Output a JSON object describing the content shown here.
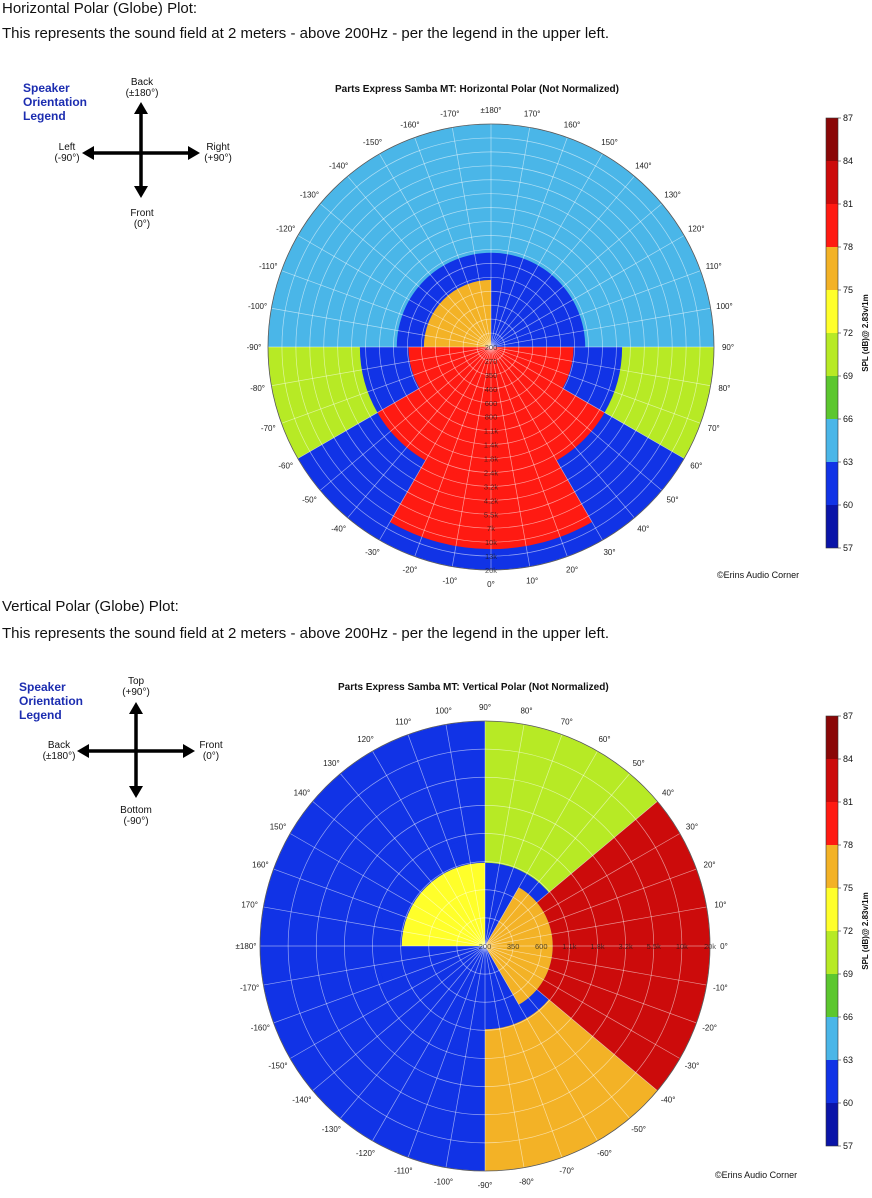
{
  "sections": [
    {
      "heading": "Horizontal Polar (Globe) Plot:",
      "description": "This represents the sound field at 2 meters - above 200Hz - per the legend in the upper left.",
      "legend_title": [
        "Speaker",
        "Orientation",
        "Legend"
      ],
      "orientation": {
        "top": [
          "Back",
          "(±180°)"
        ],
        "left": [
          "Left",
          "(-90°)"
        ],
        "right": [
          "Right",
          "(+90°)"
        ],
        "bottom": [
          "Front",
          "(0°)"
        ]
      },
      "copyright": "©Erins Audio Corner"
    },
    {
      "heading": "Vertical Polar (Globe) Plot:",
      "description": "This represents the sound field at 2 meters - above 200Hz - per the legend in the upper left.",
      "legend_title": [
        "Speaker",
        "Orientation",
        "Legend"
      ],
      "orientation": {
        "top": [
          "Top",
          "(+90°)"
        ],
        "left": [
          "Back",
          "(±180°)"
        ],
        "right": [
          "Front",
          "(0°)"
        ],
        "bottom": [
          "Bottom",
          "(-90°)"
        ]
      },
      "copyright": "©Erins Audio Corner"
    }
  ],
  "chart_data": [
    {
      "type": "heatmap",
      "coordinate_system": "polar",
      "title": "Parts Express Samba MT: Horizontal Polar (Not Normalized)",
      "angle_labels": [
        "±180°",
        "170°",
        "160°",
        "150°",
        "140°",
        "130°",
        "120°",
        "110°",
        "100°",
        "90°",
        "80°",
        "70°",
        "60°",
        "50°",
        "40°",
        "30°",
        "20°",
        "10°",
        "0°",
        "-10°",
        "-20°",
        "-30°",
        "-40°",
        "-50°",
        "-60°",
        "-70°",
        "-80°",
        "-90°",
        "-100°",
        "-110°",
        "-120°",
        "-130°",
        "-140°",
        "-150°",
        "-160°",
        "-170°"
      ],
      "angle_at_top": "±180°",
      "angle_direction": "clockwise",
      "radial_labels": [
        "200",
        "270",
        "350",
        "460",
        "600",
        "800",
        "1.1k",
        "1.4k",
        "1.8k",
        "2.4k",
        "3.2k",
        "4.2k",
        "5.5k",
        "7k",
        "10k",
        "13k",
        "20k"
      ],
      "radial_scale": "log",
      "radial_range_hz": [
        200,
        20000
      ],
      "colorbar": {
        "label": "SPL (dB)@ 2.83v/1m",
        "ticks": [
          57,
          60,
          63,
          66,
          69,
          72,
          75,
          78,
          81,
          84,
          87
        ],
        "range": [
          57,
          87
        ],
        "band_colors": [
          "#0a14a8",
          "#1133e6",
          "#4ab6e8",
          "#5cc72f",
          "#b7ea25",
          "#ffff2a",
          "#f3b226",
          "#ff1a12",
          "#cc0b0b",
          "#8a0707"
        ]
      },
      "approx_field": [
        {
          "angle_range": [
            -30,
            30
          ],
          "freq_range_hz": [
            200,
            13000
          ],
          "spl_db": 80
        },
        {
          "angle_range": [
            -60,
            60
          ],
          "freq_range_hz": [
            200,
            3000
          ],
          "spl_db": 79
        },
        {
          "angle_range": [
            -90,
            90
          ],
          "freq_range_hz": [
            200,
            1100
          ],
          "spl_db": 78
        },
        {
          "angle_range": [
            60,
            90
          ],
          "freq_range_hz": [
            3000,
            20000
          ],
          "spl_db": 71
        },
        {
          "angle_range": [
            -90,
            -60
          ],
          "freq_range_hz": [
            3000,
            20000
          ],
          "spl_db": 71
        },
        {
          "angle_range": [
            90,
            180
          ],
          "freq_range_hz": [
            200,
            800
          ],
          "spl_db": 76
        },
        {
          "angle_range": [
            90,
            180
          ],
          "freq_range_hz": [
            1400,
            20000
          ],
          "spl_db": 63
        },
        {
          "angle_range": [
            -180,
            -90
          ],
          "freq_range_hz": [
            1400,
            20000
          ],
          "spl_db": 63
        }
      ]
    },
    {
      "type": "heatmap",
      "coordinate_system": "polar",
      "title": "Parts Express Samba MT: Vertical Polar (Not Normalized)",
      "angle_labels": [
        "90°",
        "80°",
        "70°",
        "60°",
        "50°",
        "40°",
        "30°",
        "20°",
        "10°",
        "0°",
        "-10°",
        "-20°",
        "-30°",
        "-40°",
        "-50°",
        "-60°",
        "-70°",
        "-80°",
        "-90°",
        "-100°",
        "-110°",
        "-120°",
        "-130°",
        "-140°",
        "-150°",
        "-160°",
        "-170°",
        "±180°",
        "170°",
        "160°",
        "150°",
        "140°",
        "130°",
        "120°",
        "110°",
        "100°"
      ],
      "angle_at_top": "90°",
      "angle_direction": "clockwise decreasing",
      "radial_labels": [
        "200",
        "350",
        "600",
        "1.1k",
        "1.8k",
        "3.2k",
        "5.5k",
        "10k",
        "20k"
      ],
      "radial_scale": "log",
      "radial_range_hz": [
        200,
        20000
      ],
      "colorbar": {
        "label": "SPL (dB)@ 2.83v/1m",
        "ticks": [
          57,
          60,
          63,
          66,
          69,
          72,
          75,
          78,
          81,
          84,
          87
        ],
        "range": [
          57,
          87
        ],
        "band_colors": [
          "#0a14a8",
          "#1133e6",
          "#4ab6e8",
          "#5cc72f",
          "#b7ea25",
          "#ffff2a",
          "#f3b226",
          "#ff1a12",
          "#cc0b0b",
          "#8a0707"
        ]
      },
      "approx_field": [
        {
          "angle_range": [
            -40,
            40
          ],
          "freq_range_hz": [
            800,
            20000
          ],
          "spl_db": 81
        },
        {
          "angle_range": [
            -60,
            60
          ],
          "freq_range_hz": [
            200,
            800
          ],
          "spl_db": 77
        },
        {
          "angle_range": [
            40,
            90
          ],
          "freq_range_hz": [
            1100,
            20000
          ],
          "spl_db": 70
        },
        {
          "angle_range": [
            -90,
            -40
          ],
          "freq_range_hz": [
            1100,
            20000
          ],
          "spl_db": 76
        },
        {
          "angle_range": [
            90,
            180
          ],
          "freq_range_hz": [
            200,
            1100
          ],
          "spl_db": 72
        },
        {
          "angle_range": [
            90,
            180
          ],
          "freq_range_hz": [
            1800,
            20000
          ],
          "spl_db": 60
        },
        {
          "angle_range": [
            -180,
            -90
          ],
          "freq_range_hz": [
            1800,
            20000
          ],
          "spl_db": 61
        }
      ]
    }
  ]
}
